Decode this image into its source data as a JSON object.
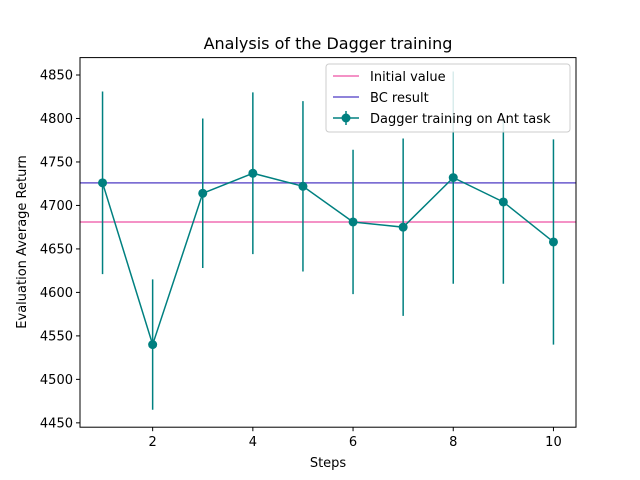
{
  "chart_data": {
    "type": "line",
    "title": "Analysis of the Dagger training",
    "xlabel": "Steps",
    "ylabel": "Evaluation Average Return",
    "xlim": [
      0.55,
      10.45
    ],
    "ylim": [
      4445,
      4870
    ],
    "x_ticks": [
      2,
      4,
      6,
      8,
      10
    ],
    "y_ticks": [
      4450,
      4500,
      4550,
      4600,
      4650,
      4700,
      4750,
      4800,
      4850
    ],
    "grid": false,
    "legend_position": "top-right",
    "horizontal_lines": [
      {
        "name": "Initial value",
        "y": 4681,
        "color": "#f06eb3"
      },
      {
        "name": "BC result",
        "y": 4726,
        "color": "#6a5acd"
      }
    ],
    "series": [
      {
        "name": "Dagger training on Ant task",
        "color": "#008080",
        "x": [
          1,
          2,
          3,
          4,
          5,
          6,
          7,
          8,
          9,
          10
        ],
        "values": [
          4726,
          4540,
          4714,
          4737,
          4722,
          4681,
          4675,
          4732,
          4704,
          4658
        ],
        "error": [
          105,
          75,
          86,
          93,
          98,
          83,
          102,
          122,
          94,
          118
        ]
      }
    ]
  }
}
